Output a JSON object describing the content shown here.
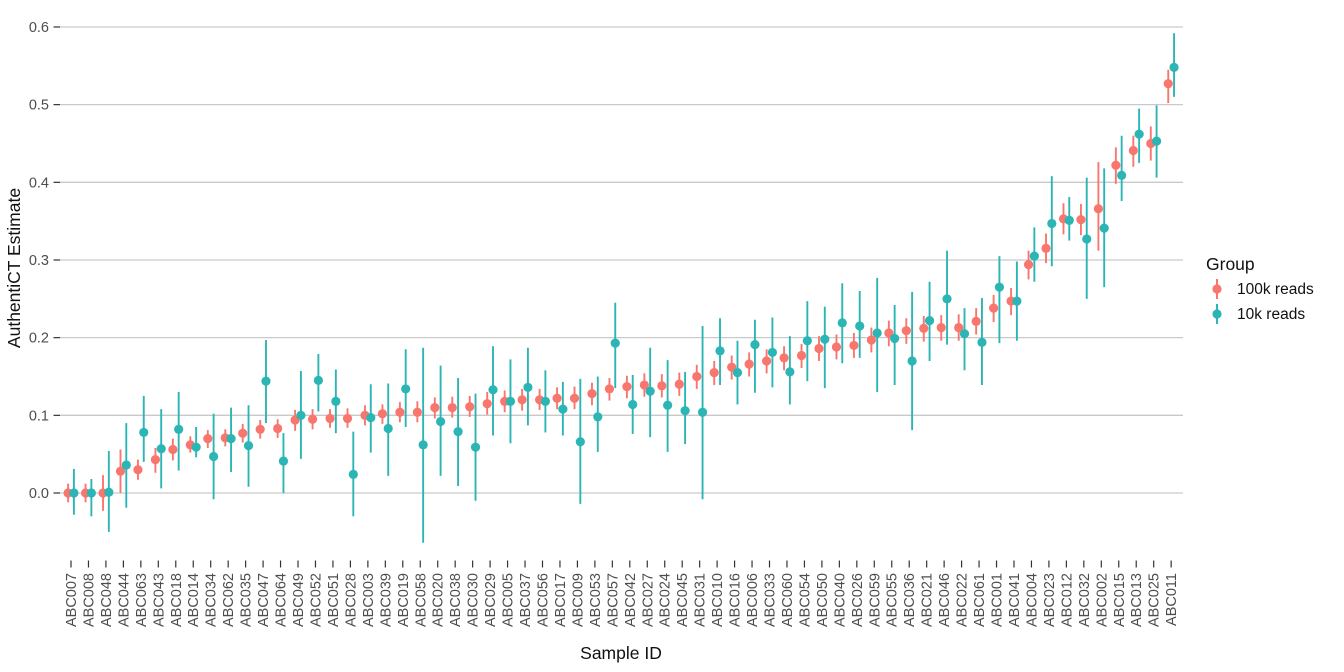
{
  "chart_data": {
    "type": "scatter",
    "subtype": "pointrange-dodged",
    "title": "",
    "xlabel": "Sample ID",
    "ylabel": "AuthentiCT Estimate",
    "ylim": [
      -0.067,
      0.62
    ],
    "yticks": [
      "0.0",
      "0.1",
      "0.2",
      "0.3",
      "0.4",
      "0.5",
      "0.6"
    ],
    "grid": "horizontal-only",
    "legend": {
      "title": "Group",
      "position": "right"
    },
    "colors": {
      "background": "#FFFFFF",
      "gridline": "#C9C9C9",
      "tick_mark": "#333333",
      "tick_label": "#4D4D4D",
      "axis_title": "#111111"
    },
    "series": [
      {
        "name": "100k reads",
        "key": "r",
        "color": "#F8766D"
      },
      {
        "name": "10k reads",
        "key": "t",
        "color": "#2CB5B5"
      }
    ],
    "value_format": "point [lower, upper] of error bar",
    "samples": [
      {
        "id": "ABC007",
        "r": [
          0.0,
          -0.012,
          0.012
        ],
        "t": [
          0.0,
          -0.028,
          0.031
        ]
      },
      {
        "id": "ABC008",
        "r": [
          0.0,
          -0.012,
          0.012
        ],
        "t": [
          0.0,
          -0.03,
          0.018
        ]
      },
      {
        "id": "ABC048",
        "r": [
          0.0,
          -0.023,
          0.023
        ],
        "t": [
          0.001,
          -0.05,
          0.054
        ]
      },
      {
        "id": "ABC044",
        "r": [
          0.028,
          0.0,
          0.056
        ],
        "t": [
          0.036,
          -0.019,
          0.09
        ]
      },
      {
        "id": "ABC063",
        "r": [
          0.03,
          0.017,
          0.043
        ],
        "t": [
          0.078,
          0.04,
          0.125
        ]
      },
      {
        "id": "ABC043",
        "r": [
          0.043,
          0.026,
          0.058
        ],
        "t": [
          0.057,
          0.006,
          0.108
        ]
      },
      {
        "id": "ABC018",
        "r": [
          0.056,
          0.042,
          0.07
        ],
        "t": [
          0.082,
          0.029,
          0.13
        ]
      },
      {
        "id": "ABC014",
        "r": [
          0.062,
          0.052,
          0.073
        ],
        "t": [
          0.059,
          0.046,
          0.085
        ]
      },
      {
        "id": "ABC034",
        "r": [
          0.07,
          0.058,
          0.081
        ],
        "t": [
          0.047,
          -0.008,
          0.102
        ]
      },
      {
        "id": "ABC062",
        "r": [
          0.071,
          0.06,
          0.082
        ],
        "t": [
          0.07,
          0.027,
          0.11
        ]
      },
      {
        "id": "ABC035",
        "r": [
          0.077,
          0.065,
          0.089
        ],
        "t": [
          0.061,
          0.008,
          0.113
        ]
      },
      {
        "id": "ABC047",
        "r": [
          0.082,
          0.07,
          0.094
        ],
        "t": [
          0.144,
          0.09,
          0.197
        ]
      },
      {
        "id": "ABC064",
        "r": [
          0.083,
          0.071,
          0.095
        ],
        "t": [
          0.041,
          0.0,
          0.077
        ]
      },
      {
        "id": "ABC049",
        "r": [
          0.094,
          0.08,
          0.107
        ],
        "t": [
          0.1,
          0.044,
          0.157
        ]
      },
      {
        "id": "ABC052",
        "r": [
          0.095,
          0.082,
          0.108
        ],
        "t": [
          0.145,
          0.105,
          0.179
        ]
      },
      {
        "id": "ABC051",
        "r": [
          0.096,
          0.084,
          0.108
        ],
        "t": [
          0.118,
          0.077,
          0.159
        ]
      },
      {
        "id": "ABC028",
        "r": [
          0.096,
          0.084,
          0.109
        ],
        "t": [
          0.024,
          -0.03,
          0.079
        ]
      },
      {
        "id": "ABC003",
        "r": [
          0.1,
          0.087,
          0.113
        ],
        "t": [
          0.097,
          0.052,
          0.14
        ]
      },
      {
        "id": "ABC039",
        "r": [
          0.102,
          0.089,
          0.114
        ],
        "t": [
          0.083,
          0.022,
          0.141
        ]
      },
      {
        "id": "ABC019",
        "r": [
          0.104,
          0.091,
          0.117
        ],
        "t": [
          0.134,
          0.085,
          0.185
        ]
      },
      {
        "id": "ABC058",
        "r": [
          0.104,
          0.091,
          0.118
        ],
        "t": [
          0.062,
          -0.064,
          0.187
        ]
      },
      {
        "id": "ABC020",
        "r": [
          0.11,
          0.096,
          0.123
        ],
        "t": [
          0.092,
          0.022,
          0.164
        ]
      },
      {
        "id": "ABC038",
        "r": [
          0.11,
          0.097,
          0.124
        ],
        "t": [
          0.079,
          0.009,
          0.148
        ]
      },
      {
        "id": "ABC030",
        "r": [
          0.111,
          0.098,
          0.125
        ],
        "t": [
          0.059,
          -0.01,
          0.128
        ]
      },
      {
        "id": "ABC029",
        "r": [
          0.115,
          0.101,
          0.13
        ],
        "t": [
          0.133,
          0.074,
          0.189
        ]
      },
      {
        "id": "ABC005",
        "r": [
          0.118,
          0.104,
          0.132
        ],
        "t": [
          0.118,
          0.064,
          0.172
        ]
      },
      {
        "id": "ABC037",
        "r": [
          0.12,
          0.106,
          0.134
        ],
        "t": [
          0.136,
          0.087,
          0.187
        ]
      },
      {
        "id": "ABC056",
        "r": [
          0.12,
          0.107,
          0.134
        ],
        "t": [
          0.118,
          0.078,
          0.158
        ]
      },
      {
        "id": "ABC017",
        "r": [
          0.122,
          0.108,
          0.136
        ],
        "t": [
          0.108,
          0.074,
          0.143
        ]
      },
      {
        "id": "ABC009",
        "r": [
          0.122,
          0.108,
          0.137
        ],
        "t": [
          0.066,
          -0.014,
          0.147
        ]
      },
      {
        "id": "ABC053",
        "r": [
          0.128,
          0.113,
          0.142
        ],
        "t": [
          0.098,
          0.053,
          0.15
        ]
      },
      {
        "id": "ABC057",
        "r": [
          0.134,
          0.119,
          0.148
        ],
        "t": [
          0.193,
          0.135,
          0.245
        ]
      },
      {
        "id": "ABC042",
        "r": [
          0.137,
          0.122,
          0.151
        ],
        "t": [
          0.114,
          0.076,
          0.152
        ]
      },
      {
        "id": "ABC027",
        "r": [
          0.139,
          0.124,
          0.154
        ],
        "t": [
          0.131,
          0.072,
          0.187
        ]
      },
      {
        "id": "ABC024",
        "r": [
          0.138,
          0.123,
          0.153
        ],
        "t": [
          0.113,
          0.053,
          0.171
        ]
      },
      {
        "id": "ABC045",
        "r": [
          0.14,
          0.125,
          0.155
        ],
        "t": [
          0.106,
          0.063,
          0.156
        ]
      },
      {
        "id": "ABC031",
        "r": [
          0.15,
          0.134,
          0.165
        ],
        "t": [
          0.104,
          -0.008,
          0.215
        ]
      },
      {
        "id": "ABC010",
        "r": [
          0.155,
          0.139,
          0.17
        ],
        "t": [
          0.183,
          0.139,
          0.225
        ]
      },
      {
        "id": "ABC016",
        "r": [
          0.162,
          0.146,
          0.177
        ],
        "t": [
          0.155,
          0.114,
          0.196
        ]
      },
      {
        "id": "ABC006",
        "r": [
          0.166,
          0.15,
          0.181
        ],
        "t": [
          0.191,
          0.129,
          0.223
        ]
      },
      {
        "id": "ABC033",
        "r": [
          0.17,
          0.154,
          0.185
        ],
        "t": [
          0.181,
          0.136,
          0.226
        ]
      },
      {
        "id": "ABC060",
        "r": [
          0.174,
          0.158,
          0.189
        ],
        "t": [
          0.156,
          0.114,
          0.202
        ]
      },
      {
        "id": "ABC054",
        "r": [
          0.177,
          0.161,
          0.192
        ],
        "t": [
          0.196,
          0.144,
          0.247
        ]
      },
      {
        "id": "ABC050",
        "r": [
          0.186,
          0.17,
          0.202
        ],
        "t": [
          0.198,
          0.135,
          0.24
        ]
      },
      {
        "id": "ABC040",
        "r": [
          0.188,
          0.172,
          0.204
        ],
        "t": [
          0.219,
          0.167,
          0.27
        ]
      },
      {
        "id": "ABC026",
        "r": [
          0.19,
          0.174,
          0.206
        ],
        "t": [
          0.215,
          0.174,
          0.26
        ]
      },
      {
        "id": "ABC059",
        "r": [
          0.197,
          0.181,
          0.213
        ],
        "t": [
          0.206,
          0.13,
          0.277
        ]
      },
      {
        "id": "ABC055",
        "r": [
          0.206,
          0.189,
          0.222
        ],
        "t": [
          0.199,
          0.139,
          0.242
        ]
      },
      {
        "id": "ABC036",
        "r": [
          0.209,
          0.192,
          0.225
        ],
        "t": [
          0.17,
          0.081,
          0.259
        ]
      },
      {
        "id": "ABC021",
        "r": [
          0.212,
          0.195,
          0.228
        ],
        "t": [
          0.222,
          0.17,
          0.272
        ]
      },
      {
        "id": "ABC046",
        "r": [
          0.213,
          0.196,
          0.229
        ],
        "t": [
          0.25,
          0.191,
          0.312
        ]
      },
      {
        "id": "ABC022",
        "r": [
          0.213,
          0.196,
          0.23
        ],
        "t": [
          0.205,
          0.158,
          0.238
        ]
      },
      {
        "id": "ABC061",
        "r": [
          0.221,
          0.204,
          0.238
        ],
        "t": [
          0.194,
          0.139,
          0.251
        ]
      },
      {
        "id": "ABC001",
        "r": [
          0.238,
          0.22,
          0.255
        ],
        "t": [
          0.265,
          0.193,
          0.305
        ]
      },
      {
        "id": "ABC041",
        "r": [
          0.247,
          0.229,
          0.264
        ],
        "t": [
          0.247,
          0.196,
          0.298
        ]
      },
      {
        "id": "ABC004",
        "r": [
          0.294,
          0.275,
          0.312
        ],
        "t": [
          0.305,
          0.272,
          0.342
        ]
      },
      {
        "id": "ABC023",
        "r": [
          0.315,
          0.296,
          0.334
        ],
        "t": [
          0.347,
          0.292,
          0.408
        ]
      },
      {
        "id": "ABC012",
        "r": [
          0.353,
          0.333,
          0.373
        ],
        "t": [
          0.351,
          0.325,
          0.381
        ]
      },
      {
        "id": "ABC032",
        "r": [
          0.352,
          0.332,
          0.372
        ],
        "t": [
          0.327,
          0.25,
          0.406
        ]
      },
      {
        "id": "ABC002",
        "r": [
          0.366,
          0.312,
          0.426
        ],
        "t": [
          0.341,
          0.265,
          0.418
        ]
      },
      {
        "id": "ABC015",
        "r": [
          0.422,
          0.398,
          0.445
        ],
        "t": [
          0.409,
          0.376,
          0.46
        ]
      },
      {
        "id": "ABC013",
        "r": [
          0.441,
          0.42,
          0.46
        ],
        "t": [
          0.462,
          0.425,
          0.495
        ]
      },
      {
        "id": "ABC025",
        "r": [
          0.45,
          0.428,
          0.472
        ],
        "t": [
          0.453,
          0.406,
          0.499
        ]
      },
      {
        "id": "ABC011",
        "r": [
          0.527,
          0.502,
          0.545
        ],
        "t": [
          0.548,
          0.51,
          0.592
        ]
      }
    ]
  }
}
